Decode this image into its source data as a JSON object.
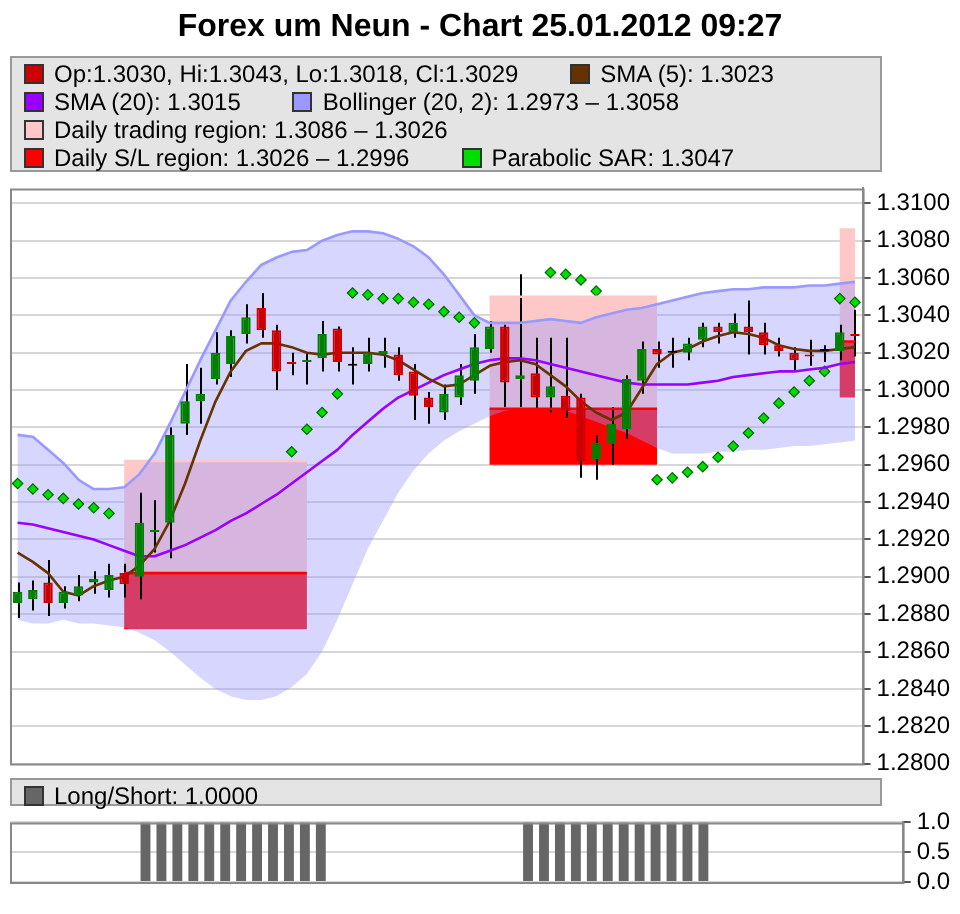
{
  "chart_data": [
    {
      "type": "candlestick",
      "title": "Forex um Neun - Chart 25.01.2012 09:27",
      "legend": "top",
      "grid": "y",
      "tick_labels": "y",
      "categories": [
        null,
        null,
        null,
        null,
        null,
        null,
        null,
        null,
        null,
        null,
        null,
        null,
        null,
        null,
        null,
        null,
        null,
        null,
        null,
        null,
        null,
        null,
        null,
        null,
        null,
        null,
        null,
        null,
        null,
        null,
        null,
        null,
        null,
        null,
        null,
        null,
        null,
        null,
        null,
        null,
        null,
        null,
        null,
        null,
        null,
        null,
        null,
        null,
        null,
        null,
        null,
        null,
        null,
        null,
        null,
        null
      ],
      "ylim": [
        1.28,
        1.3108
      ],
      "yticks": [
        {
          "value": 1.28,
          "label": "1.2800"
        },
        {
          "value": 1.282,
          "label": "1.2820"
        },
        {
          "value": 1.284,
          "label": "1.2840"
        },
        {
          "value": 1.286,
          "label": "1.2860"
        },
        {
          "value": 1.288,
          "label": "1.2880"
        },
        {
          "value": 1.29,
          "label": "1.2900"
        },
        {
          "value": 1.292,
          "label": "1.2920"
        },
        {
          "value": 1.294,
          "label": "1.2940"
        },
        {
          "value": 1.296,
          "label": "1.2960"
        },
        {
          "value": 1.298,
          "label": "1.2980"
        },
        {
          "value": 1.3,
          "label": "1.3000"
        },
        {
          "value": 1.302,
          "label": "1.3020"
        },
        {
          "value": 1.304,
          "label": "1.3040"
        },
        {
          "value": 1.306,
          "label": "1.3060"
        },
        {
          "value": 1.308,
          "label": "1.3080"
        },
        {
          "value": 1.31,
          "label": "1.3100"
        }
      ],
      "series": [
        {
          "name": "Op:1.3030, Hi:1.3043, Lo:1.3018, Cl:1.3029",
          "type": "candlestick",
          "color": "#cc0000",
          "ohlc": [
            [
              1.2886,
              1.2897,
              1.2878,
              1.2892
            ],
            [
              1.2888,
              1.2898,
              1.2882,
              1.2893
            ],
            [
              1.2897,
              1.2909,
              1.2879,
              1.2886
            ],
            [
              1.2886,
              1.2895,
              1.2883,
              1.2892
            ],
            [
              1.289,
              1.2901,
              1.2887,
              1.2895
            ],
            [
              1.2897,
              1.2903,
              1.2891,
              1.2899
            ],
            [
              1.2893,
              1.2907,
              1.2889,
              1.2901
            ],
            [
              1.2902,
              1.2907,
              1.2889,
              1.2896
            ],
            [
              1.29,
              1.2945,
              1.2888,
              1.2929
            ],
            [
              1.2924,
              1.2941,
              1.2913,
              1.2925
            ],
            [
              1.2929,
              1.298,
              1.291,
              1.2976
            ],
            [
              1.2982,
              1.3014,
              1.2976,
              1.2994
            ],
            [
              1.2994,
              1.3012,
              1.2982,
              1.2998
            ],
            [
              1.3006,
              1.3031,
              1.3003,
              1.302
            ],
            [
              1.3014,
              1.3032,
              1.3007,
              1.3029
            ],
            [
              1.303,
              1.3046,
              1.3025,
              1.3039
            ],
            [
              1.3044,
              1.3052,
              1.3028,
              1.3032
            ],
            [
              1.3032,
              1.3035,
              1.3,
              1.301
            ],
            [
              1.3015,
              1.302,
              1.3008,
              1.3014
            ],
            [
              1.3015,
              1.302,
              1.3003,
              1.3016
            ],
            [
              1.3017,
              1.3037,
              1.301,
              1.303
            ],
            [
              1.3033,
              1.3034,
              1.301,
              1.3015
            ],
            [
              1.3013,
              1.3023,
              1.3003,
              1.3014
            ],
            [
              1.3014,
              1.3028,
              1.301,
              1.302
            ],
            [
              1.3019,
              1.3028,
              1.3012,
              1.3021
            ],
            [
              1.3019,
              1.3023,
              1.3005,
              1.3008
            ],
            [
              1.301,
              1.3014,
              1.2984,
              1.2997
            ],
            [
              1.2996,
              1.2999,
              1.2982,
              1.2991
            ],
            [
              1.2988,
              1.3003,
              1.2984,
              1.2998
            ],
            [
              1.2996,
              1.3014,
              1.2992,
              1.3008
            ],
            [
              1.3005,
              1.303,
              1.2998,
              1.3023
            ],
            [
              1.3022,
              1.3037,
              1.302,
              1.3034
            ],
            [
              1.3034,
              1.3035,
              1.2991,
              1.3004
            ],
            [
              1.3006,
              1.3062,
              1.2991,
              1.3008
            ],
            [
              1.3009,
              1.3028,
              1.299,
              1.2996
            ],
            [
              1.2996,
              1.3028,
              1.2988,
              1.3002
            ],
            [
              1.2997,
              1.3028,
              1.2985,
              1.2989
            ],
            [
              1.2996,
              1.2998,
              1.2953,
              1.2962
            ],
            [
              1.2963,
              1.2976,
              1.2952,
              1.2972
            ],
            [
              1.2971,
              1.2991,
              1.296,
              1.2982
            ],
            [
              1.2979,
              1.3008,
              1.2974,
              1.3006
            ],
            [
              1.3005,
              1.3026,
              1.2998,
              1.3022
            ],
            [
              1.3022,
              1.3026,
              1.3012,
              1.3019
            ],
            [
              1.302,
              1.3028,
              1.3012,
              1.302
            ],
            [
              1.302,
              1.3028,
              1.3016,
              1.3025
            ],
            [
              1.3027,
              1.3036,
              1.3023,
              1.3034
            ],
            [
              1.3034,
              1.3036,
              1.3025,
              1.3031
            ],
            [
              1.3031,
              1.3041,
              1.3028,
              1.3036
            ],
            [
              1.3034,
              1.3048,
              1.3019,
              1.3031
            ],
            [
              1.3031,
              1.3036,
              1.3019,
              1.3024
            ],
            [
              1.3024,
              1.3028,
              1.3018,
              1.3021
            ],
            [
              1.302,
              1.3023,
              1.301,
              1.3016
            ],
            [
              1.3019,
              1.3027,
              1.3013,
              1.3018
            ],
            [
              1.3021,
              1.3024,
              1.3015,
              1.3021
            ],
            [
              1.3021,
              1.3035,
              1.3016,
              1.3031
            ],
            [
              1.303,
              1.3043,
              1.3018,
              1.3029
            ]
          ],
          "colors": [
            "#008000",
            "#008000",
            "#cc0000",
            "#008000",
            "#008000",
            "#008000",
            "#008000",
            "#cc0000",
            "#008000",
            "#008000",
            "#008000",
            "#008000",
            "#008000",
            "#008000",
            "#008000",
            "#008000",
            "#cc0000",
            "#cc0000",
            "#cc0000",
            "#008000",
            "#008000",
            "#cc0000",
            "#000000",
            "#008000",
            "#008000",
            "#cc0000",
            "#cc0000",
            "#cc0000",
            "#008000",
            "#008000",
            "#008000",
            "#008000",
            "#cc0000",
            "#008000",
            "#cc0000",
            "#008000",
            "#cc0000",
            "#cc0000",
            "#008000",
            "#008000",
            "#008000",
            "#008000",
            "#cc0000",
            "#000000",
            "#008000",
            "#008000",
            "#cc0000",
            "#008000",
            "#cc0000",
            "#cc0000",
            "#cc0000",
            "#cc0000",
            "#cc0000",
            "#000000",
            "#008000",
            "#cc0000"
          ]
        },
        {
          "name": "SMA (5): 1.3023",
          "type": "line",
          "color": "#663300",
          "values": [
            1.2913,
            1.2908,
            1.2902,
            1.2892,
            1.289,
            1.2895,
            1.2898,
            1.29,
            1.2906,
            1.2915,
            1.293,
            1.295,
            1.2973,
            1.2994,
            1.301,
            1.3021,
            1.3025,
            1.3025,
            1.3023,
            1.302,
            1.3019,
            1.302,
            1.302,
            1.302,
            1.3019,
            1.3016,
            1.3011,
            1.3006,
            1.3002,
            1.3003,
            1.3008,
            1.3013,
            1.3015,
            1.3016,
            1.3014,
            1.3008,
            1.3002,
            1.2994,
            1.2988,
            1.2984,
            1.2988,
            1.3001,
            1.3014,
            1.302,
            1.3022,
            1.3026,
            1.3029,
            1.3031,
            1.303,
            1.3028,
            1.3024,
            1.3022,
            1.3021,
            1.3021,
            1.3022,
            1.3023
          ]
        },
        {
          "name": "SMA (20): 1.3015",
          "type": "line",
          "color": "#9900ff",
          "values": [
            1.2929,
            1.2928,
            1.2926,
            1.2924,
            1.2922,
            1.292,
            1.2917,
            1.2914,
            1.2911,
            1.2911,
            1.2914,
            1.2917,
            1.2921,
            1.2925,
            1.293,
            1.2934,
            1.2939,
            1.2944,
            1.295,
            1.2956,
            1.2962,
            1.2968,
            1.2976,
            1.2983,
            1.299,
            1.2996,
            1.3,
            1.3004,
            1.3008,
            1.3011,
            1.3014,
            1.3016,
            1.3017,
            1.3017,
            1.3016,
            1.3014,
            1.3012,
            1.301,
            1.3008,
            1.3006,
            1.3004,
            1.3003,
            1.3003,
            1.3003,
            1.3003,
            1.3004,
            1.3005,
            1.3007,
            1.3008,
            1.3009,
            1.301,
            1.301,
            1.3011,
            1.3012,
            1.3014,
            1.3015
          ]
        },
        {
          "name": "Bollinger (20, 2): 1.2973 – 1.3058",
          "type": "line",
          "color": "#9999ff",
          "upper": [
            1.2976,
            1.2975,
            1.2968,
            1.2961,
            1.2952,
            1.2947,
            1.2947,
            1.2948,
            1.2955,
            1.2966,
            1.2982,
            1.2999,
            1.3016,
            1.3032,
            1.3048,
            1.3058,
            1.3067,
            1.3071,
            1.3074,
            1.3075,
            1.308,
            1.3083,
            1.3085,
            1.3085,
            1.3084,
            1.3081,
            1.3077,
            1.3071,
            1.3062,
            1.3051,
            1.304,
            1.3036,
            1.3036,
            1.3036,
            1.3037,
            1.3038,
            1.3037,
            1.3036,
            1.3039,
            1.3041,
            1.3043,
            1.3044,
            1.3046,
            1.3048,
            1.305,
            1.3052,
            1.3053,
            1.3054,
            1.3054,
            1.3055,
            1.3055,
            1.3055,
            1.3056,
            1.3056,
            1.3057,
            1.3058
          ],
          "values": [
            1.2976,
            1.2975,
            1.2968,
            1.2961,
            1.2952,
            1.2947,
            1.2947,
            1.2948,
            1.2955,
            1.2966,
            1.2982,
            1.2999,
            1.3016,
            1.3032,
            1.3048,
            1.3058,
            1.3067,
            1.3071,
            1.3074,
            1.3075,
            1.308,
            1.3083,
            1.3085,
            1.3085,
            1.3084,
            1.3081,
            1.3077,
            1.3071,
            1.3062,
            1.3051,
            1.304,
            1.3036,
            1.3036,
            1.3036,
            1.3037,
            1.3038,
            1.3037,
            1.3036,
            1.3039,
            1.3041,
            1.3043,
            1.3044,
            1.3046,
            1.3048,
            1.305,
            1.3052,
            1.3053,
            1.3054,
            1.3054,
            1.3055,
            1.3055,
            1.3055,
            1.3056,
            1.3056,
            1.3057,
            1.3058
          ],
          "lower": [
            1.2877,
            1.2875,
            1.2875,
            1.2877,
            1.2875,
            1.2875,
            1.2874,
            1.2873,
            1.287,
            1.2866,
            1.286,
            1.2853,
            1.2846,
            1.284,
            1.2836,
            1.2834,
            1.2834,
            1.2836,
            1.2841,
            1.2848,
            1.286,
            1.2877,
            1.2896,
            1.2915,
            1.293,
            1.2945,
            1.2957,
            1.2966,
            1.2973,
            1.2978,
            1.2982,
            1.2986,
            1.2989,
            1.299,
            1.299,
            1.299,
            1.2989,
            1.2986,
            1.2983,
            1.298,
            1.2977,
            1.2973,
            1.2969,
            1.2966,
            1.2966,
            1.2966,
            1.2967,
            1.2967,
            1.2968,
            1.2968,
            1.2969,
            1.297,
            1.297,
            1.2971,
            1.2972,
            1.2973
          ]
        },
        {
          "name": "Daily trading region: 1.3086 – 1.3026",
          "type": "line",
          "color": "#ffc8c8",
          "values": [
            null,
            null,
            null,
            null,
            null,
            null,
            null,
            1.2962,
            1.2962,
            1.2962,
            1.2962,
            1.2962,
            1.2962,
            1.2962,
            1.2962,
            1.2962,
            1.2962,
            1.2962,
            1.2962,
            1.2962,
            null,
            null,
            null,
            null,
            null,
            null,
            null,
            null,
            null,
            null,
            null,
            1.305,
            1.305,
            1.305,
            1.305,
            1.305,
            1.305,
            1.305,
            1.305,
            1.305,
            1.305,
            1.305,
            1.305,
            null,
            null,
            null,
            null,
            null,
            null,
            null,
            null,
            null,
            null,
            null,
            1.3086,
            1.3086
          ],
          "upper": [
            null,
            null,
            null,
            null,
            null,
            null,
            null,
            1.2962,
            1.2962,
            1.2962,
            1.2962,
            1.2962,
            1.2962,
            1.2962,
            1.2962,
            1.2962,
            1.2962,
            1.2962,
            1.2962,
            1.2962,
            null,
            null,
            null,
            null,
            null,
            null,
            null,
            null,
            null,
            null,
            null,
            1.305,
            1.305,
            1.305,
            1.305,
            1.305,
            1.305,
            1.305,
            1.305,
            1.305,
            1.305,
            1.305,
            1.305,
            null,
            null,
            null,
            null,
            null,
            null,
            null,
            null,
            null,
            null,
            null,
            1.3086,
            1.3086
          ],
          "lower": [
            null,
            null,
            null,
            null,
            null,
            null,
            null,
            1.2902,
            1.2902,
            1.2902,
            1.2902,
            1.2902,
            1.2902,
            1.2902,
            1.2902,
            1.2902,
            1.2902,
            1.2902,
            1.2902,
            1.2902,
            null,
            null,
            null,
            null,
            null,
            null,
            null,
            null,
            null,
            null,
            null,
            1.299,
            1.299,
            1.299,
            1.299,
            1.299,
            1.299,
            1.299,
            1.299,
            1.299,
            1.299,
            1.299,
            1.299,
            null,
            null,
            null,
            null,
            null,
            null,
            null,
            null,
            null,
            null,
            null,
            1.3026,
            1.3026
          ]
        },
        {
          "name": "Daily S/L region: 1.3026 – 1.2996",
          "type": "line",
          "color": "#ff0000",
          "values": [
            null,
            null,
            null,
            null,
            null,
            null,
            null,
            1.2902,
            1.2902,
            1.2902,
            1.2902,
            1.2902,
            1.2902,
            1.2902,
            1.2902,
            1.2902,
            1.2902,
            1.2902,
            1.2902,
            1.2902,
            null,
            null,
            null,
            null,
            null,
            null,
            null,
            null,
            null,
            null,
            null,
            1.299,
            1.299,
            1.299,
            1.299,
            1.299,
            1.299,
            1.299,
            1.299,
            1.299,
            1.299,
            1.299,
            1.299,
            null,
            null,
            null,
            null,
            null,
            null,
            null,
            null,
            null,
            null,
            null,
            1.3026,
            1.3026
          ],
          "upper": [
            null,
            null,
            null,
            null,
            null,
            null,
            null,
            1.2902,
            1.2902,
            1.2902,
            1.2902,
            1.2902,
            1.2902,
            1.2902,
            1.2902,
            1.2902,
            1.2902,
            1.2902,
            1.2902,
            1.2902,
            null,
            null,
            null,
            null,
            null,
            null,
            null,
            null,
            null,
            null,
            null,
            1.299,
            1.299,
            1.299,
            1.299,
            1.299,
            1.299,
            1.299,
            1.299,
            1.299,
            1.299,
            1.299,
            1.299,
            null,
            null,
            null,
            null,
            null,
            null,
            null,
            null,
            null,
            null,
            null,
            1.3026,
            1.3026
          ],
          "lower": [
            null,
            null,
            null,
            null,
            null,
            null,
            null,
            1.2872,
            1.2872,
            1.2872,
            1.2872,
            1.2872,
            1.2872,
            1.2872,
            1.2872,
            1.2872,
            1.2872,
            1.2872,
            1.2872,
            1.2872,
            null,
            null,
            null,
            null,
            null,
            null,
            null,
            null,
            null,
            null,
            null,
            1.296,
            1.296,
            1.296,
            1.296,
            1.296,
            1.296,
            1.296,
            1.296,
            1.296,
            1.296,
            1.296,
            1.296,
            null,
            null,
            null,
            null,
            null,
            null,
            null,
            null,
            null,
            null,
            null,
            1.2996,
            1.2996
          ]
        },
        {
          "name": "Parabolic SAR: 1.3047",
          "type": "scatter",
          "color": "#00dd00",
          "marker": "diamond",
          "values": [
            1.295,
            1.2947,
            1.2944,
            1.2942,
            1.2939,
            1.2937,
            1.2934,
            null,
            null,
            null,
            null,
            null,
            null,
            null,
            null,
            null,
            null,
            null,
            1.2967,
            1.2979,
            1.2988,
            1.2998,
            1.3052,
            1.3051,
            1.3049,
            1.3049,
            1.3047,
            1.3046,
            1.3042,
            1.3039,
            1.3036,
            null,
            null,
            null,
            null,
            1.3063,
            1.3062,
            1.3059,
            1.3053,
            null,
            null,
            null,
            1.2952,
            1.2953,
            1.2956,
            1.2959,
            1.2964,
            1.297,
            1.2977,
            1.2985,
            1.2993,
            1.2999,
            1.3005,
            1.301,
            1.3049,
            1.3047
          ]
        }
      ]
    },
    {
      "type": "bar",
      "legend": "top",
      "grid": "y",
      "tick_labels": "y",
      "categories": [
        null,
        null,
        null,
        null,
        null,
        null,
        null,
        null,
        null,
        null,
        null,
        null,
        null,
        null,
        null,
        null,
        null,
        null,
        null,
        null,
        null,
        null,
        null,
        null,
        null,
        null,
        null,
        null,
        null,
        null,
        null,
        null,
        null,
        null,
        null,
        null,
        null,
        null,
        null,
        null,
        null,
        null,
        null,
        null,
        null,
        null,
        null,
        null,
        null,
        null,
        null,
        null,
        null,
        null,
        null,
        null
      ],
      "ylim": [
        0,
        1
      ],
      "yticks": [
        {
          "value": 0,
          "label": "0.0"
        },
        {
          "value": 0.5,
          "label": "0.5"
        },
        {
          "value": 1,
          "label": "1.0"
        }
      ],
      "series": [
        {
          "name": "Long/Short: 1.0000",
          "color": "#666666",
          "values": [
            0,
            0,
            0,
            0,
            0,
            0,
            0,
            0,
            1,
            1,
            1,
            1,
            1,
            1,
            1,
            1,
            1,
            1,
            1,
            1,
            0,
            0,
            0,
            0,
            0,
            0,
            0,
            0,
            0,
            0,
            0,
            0,
            1,
            1,
            1,
            1,
            1,
            1,
            1,
            1,
            1,
            1,
            1,
            1,
            0,
            0,
            0,
            0,
            0,
            0,
            0,
            0,
            0,
            0,
            0,
            0
          ]
        }
      ]
    }
  ]
}
